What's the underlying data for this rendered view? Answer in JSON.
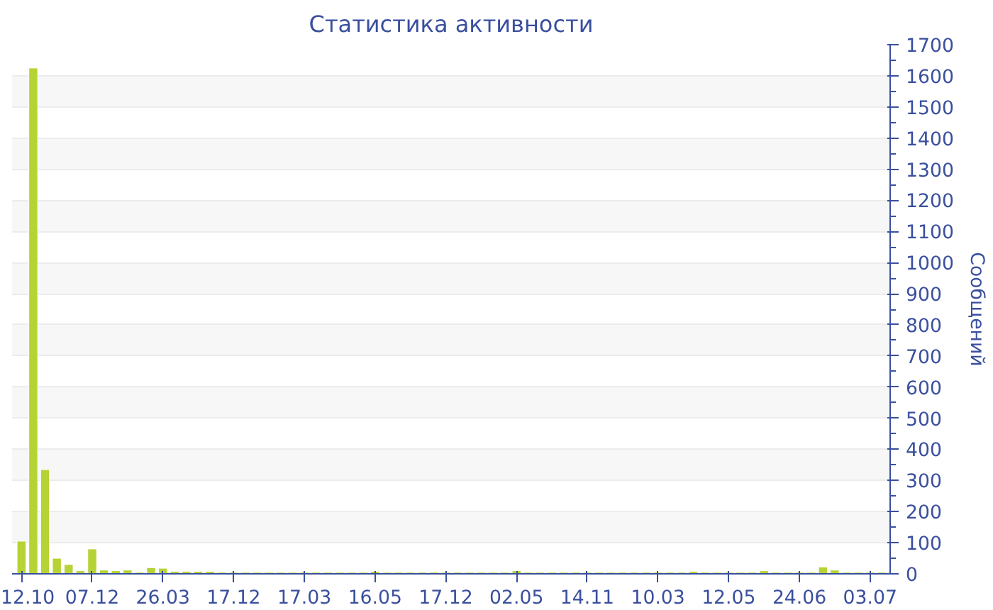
{
  "chart_data": {
    "type": "bar",
    "title": "Статистика активности",
    "ylabel": "Сообщений",
    "categories": [
      "12.10",
      null,
      null,
      null,
      null,
      null,
      "07.12",
      null,
      null,
      null,
      null,
      null,
      "26.03",
      null,
      null,
      null,
      null,
      null,
      "17.12",
      null,
      null,
      null,
      null,
      null,
      "17.03",
      null,
      null,
      null,
      null,
      null,
      "16.05",
      null,
      null,
      null,
      null,
      null,
      "17.12",
      null,
      null,
      null,
      null,
      null,
      "02.05",
      null,
      null,
      null,
      null,
      null,
      "14.11",
      null,
      null,
      null,
      null,
      null,
      "10.03",
      null,
      null,
      null,
      null,
      null,
      "12.05",
      null,
      null,
      null,
      null,
      null,
      "24.06",
      null,
      null,
      null,
      null,
      null,
      "03.07",
      null
    ],
    "values": [
      105,
      1625,
      335,
      50,
      30,
      10,
      80,
      12,
      10,
      12,
      5,
      20,
      18,
      8,
      8,
      8,
      8,
      5,
      5,
      5,
      5,
      5,
      5,
      5,
      5,
      5,
      5,
      5,
      5,
      5,
      8,
      5,
      5,
      5,
      5,
      5,
      5,
      5,
      5,
      5,
      5,
      5,
      10,
      5,
      5,
      5,
      5,
      5,
      5,
      5,
      5,
      5,
      5,
      5,
      5,
      5,
      5,
      8,
      5,
      5,
      5,
      5,
      5,
      10,
      5,
      5,
      5,
      5,
      22,
      12,
      5,
      5,
      5,
      5
    ],
    "color": "#b5d334",
    "ylim": [
      0,
      1700
    ],
    "yticks": [
      0,
      100,
      200,
      300,
      400,
      500,
      600,
      700,
      800,
      900,
      1000,
      1100,
      1200,
      1300,
      1400,
      1500,
      1600,
      1700
    ],
    "grid": "y"
  }
}
